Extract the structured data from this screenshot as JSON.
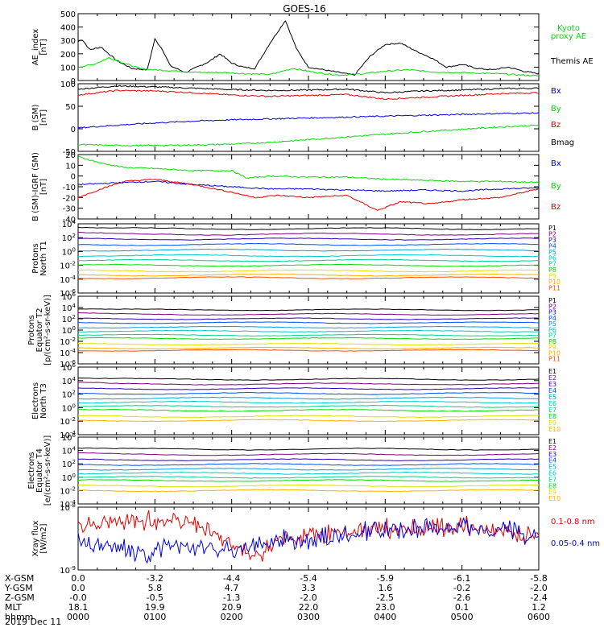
{
  "title": "GOES-16",
  "date_label": "2019 Dec 11",
  "colors": {
    "black": "#000000",
    "green": "#00e000",
    "blue": "#0000e6",
    "red": "#e00000",
    "p_colors": [
      "#000000",
      "#800080",
      "#3000c0",
      "#0050ff",
      "#00a0e0",
      "#00c8c8",
      "#00d090",
      "#00e000",
      "#e0e000",
      "#ffb000",
      "#ff5000",
      "#e00000"
    ]
  },
  "ephemeris": {
    "row_labels": [
      "X-GSM",
      "Y-GSM",
      "Z-GSM",
      "MLT",
      "hhmm"
    ],
    "columns": [
      {
        "x": "0.0",
        "y": "0.0",
        "z": "-0.0",
        "mlt": "18.1",
        "hhmm": "0000"
      },
      {
        "x": "-3.2",
        "y": "5.8",
        "z": "-0.5",
        "mlt": "19.9",
        "hhmm": "0100"
      },
      {
        "x": "-4.4",
        "y": "4.7",
        "z": "-1.3",
        "mlt": "20.9",
        "hhmm": "0200"
      },
      {
        "x": "-5.4",
        "y": "3.3",
        "z": "-2.0",
        "mlt": "22.0",
        "hhmm": "0300"
      },
      {
        "x": "-5.9",
        "y": "1.6",
        "z": "-2.5",
        "mlt": "23.0",
        "hhmm": "0400"
      },
      {
        "x": "-6.1",
        "y": "-0.2",
        "z": "-2.6",
        "mlt": "0.1",
        "hhmm": "0500"
      },
      {
        "x": "-5.8",
        "y": "-2.0",
        "z": "-2.4",
        "mlt": "1.2",
        "hhmm": "0600"
      }
    ]
  },
  "chart_data": [
    {
      "type": "line",
      "id": "ae",
      "ylabel": [
        "AE_index",
        "[nT]"
      ],
      "ylim": [
        0,
        500
      ],
      "yticks": [
        "0",
        "100",
        "200",
        "300",
        "400",
        "500"
      ],
      "legend": [
        {
          "label": "Kyoto",
          "color": "green"
        },
        {
          "label": "proxy AE",
          "color": "green"
        },
        {
          "label": "Themis AE",
          "color": "black"
        }
      ],
      "series": [
        {
          "color": "black",
          "x": [
            0,
            0.05,
            0.15,
            0.3,
            0.5,
            0.7,
            0.9,
            1.0,
            1.1,
            1.2,
            1.4,
            1.55,
            1.7,
            1.85,
            2.0,
            2.15,
            2.3,
            2.5,
            2.7,
            2.85,
            3.0,
            3.2,
            3.4,
            3.6,
            3.8,
            4.0,
            4.2,
            4.4,
            4.6,
            4.8,
            5.0,
            5.2,
            5.4,
            5.6,
            5.8,
            6.0
          ],
          "values": [
            290,
            310,
            230,
            250,
            150,
            90,
            80,
            310,
            230,
            110,
            60,
            100,
            140,
            200,
            130,
            100,
            90,
            280,
            450,
            230,
            100,
            80,
            60,
            40,
            180,
            270,
            280,
            220,
            170,
            100,
            120,
            90,
            80,
            100,
            70,
            50
          ]
        },
        {
          "color": "green",
          "x": [
            0,
            0.2,
            0.4,
            0.6,
            0.8,
            1.0,
            1.3,
            1.6,
            1.9,
            2.2,
            2.5,
            2.8,
            3.1,
            3.4,
            3.7,
            4.0,
            4.3,
            4.6,
            4.9,
            5.2,
            5.5,
            5.8,
            6.0
          ],
          "values": [
            100,
            120,
            170,
            130,
            90,
            80,
            70,
            60,
            60,
            50,
            45,
            90,
            60,
            40,
            50,
            70,
            80,
            65,
            60,
            55,
            50,
            40,
            35
          ]
        }
      ]
    },
    {
      "type": "line",
      "id": "b_sm",
      "ylabel": [
        "B (SM)",
        "[nT]"
      ],
      "ylim": [
        -50,
        100
      ],
      "yticks": [
        "-50",
        "0",
        "50",
        "100"
      ],
      "legend": [
        {
          "label": "Bx",
          "color": "blue"
        },
        {
          "label": "By",
          "color": "green"
        },
        {
          "label": "Bz",
          "color": "red"
        },
        {
          "label": "Bmag",
          "color": "black"
        }
      ],
      "series": [
        {
          "color": "black",
          "x": [
            0,
            0.5,
            1.0,
            1.5,
            2.0,
            2.5,
            3.0,
            3.5,
            4.0,
            4.5,
            5.0,
            5.5,
            6.0
          ],
          "values": [
            88,
            95,
            93,
            90,
            87,
            85,
            86,
            88,
            80,
            84,
            86,
            89,
            90
          ]
        },
        {
          "color": "red",
          "x": [
            0,
            0.5,
            1.0,
            1.5,
            2.0,
            2.5,
            3.0,
            3.5,
            4.0,
            4.5,
            5.0,
            5.5,
            6.0
          ],
          "values": [
            75,
            85,
            84,
            80,
            75,
            72,
            74,
            76,
            66,
            70,
            74,
            78,
            80
          ]
        },
        {
          "color": "blue",
          "x": [
            0,
            0.5,
            1.0,
            1.5,
            2.0,
            2.5,
            3.0,
            3.5,
            4.0,
            4.5,
            5.0,
            5.5,
            6.0
          ],
          "values": [
            2,
            8,
            13,
            17,
            20,
            22,
            24,
            26,
            28,
            30,
            32,
            34,
            35
          ]
        },
        {
          "color": "green",
          "x": [
            0,
            0.5,
            1.0,
            1.5,
            2.0,
            2.5,
            3.0,
            3.5,
            4.0,
            4.5,
            5.0,
            5.5,
            6.0
          ],
          "values": [
            -35,
            -37,
            -37,
            -36,
            -34,
            -30,
            -24,
            -18,
            -12,
            -6,
            -1,
            4,
            8
          ]
        }
      ]
    },
    {
      "type": "line",
      "id": "b_minus_igrf",
      "ylabel": [
        "B (SM)-IGRF (SM)",
        "[nT]"
      ],
      "ylim": [
        -40,
        20
      ],
      "yticks": [
        "-40",
        "-30",
        "-20",
        "-10",
        "0",
        "10",
        "20"
      ],
      "legend": [
        {
          "label": "Bx",
          "color": "blue"
        },
        {
          "label": "By",
          "color": "green"
        },
        {
          "label": "Bz",
          "color": "red"
        }
      ],
      "series": [
        {
          "color": "green",
          "x": [
            0,
            0.3,
            0.6,
            1.0,
            1.5,
            2.0,
            2.2,
            2.5,
            3.0,
            3.5,
            4.0,
            4.5,
            5.0,
            5.5,
            6.0
          ],
          "values": [
            18,
            12,
            8,
            7,
            5,
            5,
            -2,
            0,
            -1,
            -1,
            -3,
            -4,
            -5,
            -5,
            -6
          ]
        },
        {
          "color": "blue",
          "x": [
            0,
            0.3,
            0.6,
            1.0,
            1.5,
            2.0,
            2.5,
            3.0,
            3.5,
            4.0,
            4.5,
            5.0,
            5.5,
            6.0
          ],
          "values": [
            -8,
            -7,
            -6,
            -5,
            -8,
            -10,
            -12,
            -12,
            -13,
            -14,
            -13,
            -14,
            -12,
            -11
          ]
        },
        {
          "color": "red",
          "x": [
            0,
            0.3,
            0.6,
            1.0,
            1.5,
            2.0,
            2.3,
            2.6,
            3.0,
            3.5,
            3.9,
            4.2,
            4.6,
            5.0,
            5.5,
            6.0
          ],
          "values": [
            -20,
            -12,
            -5,
            -3,
            -8,
            -15,
            -20,
            -18,
            -20,
            -18,
            -32,
            -24,
            -26,
            -22,
            -20,
            -12
          ]
        }
      ]
    },
    {
      "type": "line",
      "id": "protons_t1",
      "ylabel": [
        "Protons",
        "North T1"
      ],
      "ylog": true,
      "ylim_exp": [
        -6,
        4
      ],
      "yticks": [
        "10^-6",
        "10^-4",
        "10^-2",
        "10^0",
        "10^2",
        "10^4"
      ],
      "legend": [
        "P1",
        "P2",
        "P3",
        "P4",
        "P5",
        "P6",
        "P7",
        "P8",
        "P9",
        "P10",
        "P11"
      ],
      "levels_exp": [
        3.3,
        2.5,
        1.8,
        1.0,
        0.2,
        -0.6,
        -1.3,
        -2.0,
        -2.8,
        -3.4,
        -3.8
      ]
    },
    {
      "type": "line",
      "id": "protons_t2",
      "ylabel": [
        "Protons",
        "Equator T2",
        "[p/(cm²-s-sr-keV)]"
      ],
      "ylog": true,
      "ylim_exp": [
        -6,
        6
      ],
      "yticks": [
        "10^-6",
        "10^-4",
        "10^-2",
        "10^0",
        "10^2",
        "10^4",
        "10^6"
      ],
      "legend": [
        "P1",
        "P2",
        "P3",
        "P4",
        "P5",
        "P6",
        "P7",
        "P8",
        "P9",
        "P10",
        "P11"
      ],
      "levels_exp": [
        3.6,
        2.8,
        2.0,
        1.3,
        0.5,
        -0.2,
        -0.9,
        -1.5,
        -2.5,
        -3.2,
        -3.6
      ]
    },
    {
      "type": "line",
      "id": "electrons_t3",
      "ylabel": [
        "Electrons",
        "North T3"
      ],
      "ylog": true,
      "ylim_exp": [
        -4,
        6
      ],
      "yticks": [
        "10^-4",
        "10^-2",
        "10^0",
        "10^2",
        "10^4",
        "10^6"
      ],
      "legend": [
        "E1",
        "E2",
        "E3",
        "E4",
        "E5",
        "E6",
        "E7",
        "E8",
        "E9",
        "E10"
      ],
      "levels_exp": [
        4.2,
        3.5,
        2.8,
        2.1,
        1.4,
        0.8,
        0.2,
        -0.4,
        -1.3,
        -1.9
      ]
    },
    {
      "type": "line",
      "id": "electrons_t4",
      "ylabel": [
        "Electrons",
        "Equator T4",
        "[e/(cm²-s-sr-keV)]"
      ],
      "ylog": true,
      "ylim_exp": [
        -4,
        6
      ],
      "yticks": [
        "10^-4",
        "10^-2",
        "10^0",
        "10^2",
        "10^4",
        "10^6"
      ],
      "legend": [
        "E1",
        "E2",
        "E3",
        "E4",
        "E5",
        "E6",
        "E7",
        "E8",
        "E9",
        "E10"
      ],
      "levels_exp": [
        4.2,
        3.4,
        2.6,
        1.9,
        1.2,
        0.6,
        0.0,
        -0.5,
        -1.3,
        -2.0
      ]
    },
    {
      "type": "line",
      "id": "xray",
      "ylabel": [
        "Xray flux",
        "[W/m2]"
      ],
      "ylog": true,
      "ylim_exp": [
        -9,
        -8
      ],
      "yticks": [
        "10^-9",
        "10^-8"
      ],
      "legend": [
        {
          "label": "0.1-0.8 nm",
          "color": "red"
        },
        {
          "label": "0.05-0.4 nm",
          "color": "blue"
        }
      ],
      "series": [
        {
          "color": "red",
          "x": [
            0,
            0.5,
            1.0,
            1.5,
            2.0,
            2.3,
            2.6,
            3.0,
            3.5,
            4.0,
            4.5,
            5.0,
            5.5,
            6.0
          ],
          "values_exp": [
            -8.3,
            -8.25,
            -8.2,
            -8.25,
            -8.6,
            -8.8,
            -8.55,
            -8.45,
            -8.4,
            -8.35,
            -8.35,
            -8.3,
            -8.4,
            -8.45
          ]
        },
        {
          "color": "blue",
          "x": [
            0,
            0.5,
            0.9,
            1.2,
            1.5,
            2.0,
            2.5,
            3.0,
            3.5,
            4.0,
            4.5,
            5.0,
            5.5,
            6.0
          ],
          "values_exp": [
            -8.55,
            -8.65,
            -8.75,
            -8.6,
            -8.65,
            -8.65,
            -8.55,
            -8.5,
            -8.45,
            -8.35,
            -8.35,
            -8.3,
            -8.35,
            -8.45
          ]
        }
      ]
    }
  ]
}
